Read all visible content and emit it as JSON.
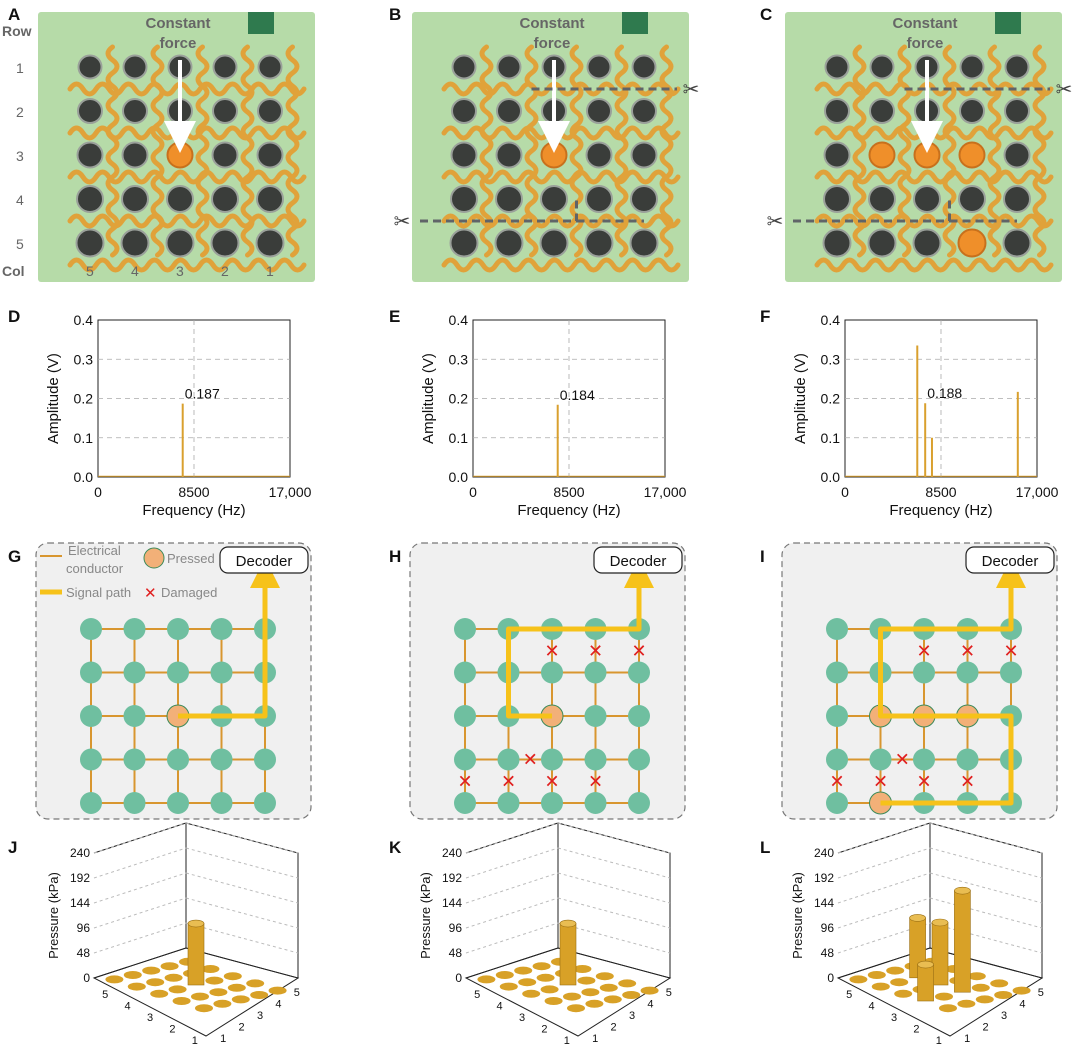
{
  "figure": {
    "panel_letters": [
      "A",
      "B",
      "C",
      "D",
      "E",
      "F",
      "G",
      "H",
      "I",
      "J",
      "K",
      "L"
    ],
    "photo": {
      "force_label_line1": "Constant",
      "force_label_line2": "force",
      "row_header": "Row",
      "col_header": "Col",
      "row_numbers": [
        "1",
        "2",
        "3",
        "4",
        "5"
      ],
      "col_numbers": [
        "5",
        "4",
        "3",
        "2",
        "1"
      ],
      "colors": {
        "background": "#b6dba8",
        "serpentine": "#e0a23a",
        "button": "#3a3d3a",
        "pressed": "#ef8f2a",
        "arrow": "#ffffff",
        "cut_line": "#606468"
      }
    },
    "spectra_common": {
      "xlabel": "Frequency (Hz)",
      "ylabel": "Amplitude (V)",
      "x_ticks": [
        "0",
        "8500",
        "17,000"
      ],
      "y_ticks": [
        "0.0",
        "0.1",
        "0.2",
        "0.3",
        "0.4"
      ],
      "line_color": "#d9a02e"
    },
    "schematic": {
      "decoder_label": "Decoder",
      "legend_conductor_line1": "Electrical",
      "legend_conductor_line2": "conductor",
      "legend_pressed": "Pressed",
      "legend_signal": "Signal path",
      "legend_damaged": "Damaged",
      "colors": {
        "node": "#6fbfa0",
        "pressed": "#f2b078",
        "grid": "#d8962f",
        "signal": "#f6c21a",
        "damaged": "#e02020",
        "panel_bg": "#f0f0f0"
      }
    },
    "bars_common": {
      "zlabel": "Pressure (kPa)",
      "z_ticks": [
        "0",
        "48",
        "96",
        "144",
        "192",
        "240"
      ],
      "axis_ticks": [
        "1",
        "2",
        "3",
        "4",
        "5"
      ],
      "bar_color": "#d8a127"
    }
  },
  "chart_data": [
    {
      "panel": "D",
      "type": "line",
      "title": "",
      "xlabel": "Frequency (Hz)",
      "ylabel": "Amplitude (V)",
      "xlim": [
        0,
        17000
      ],
      "ylim": [
        0,
        0.4
      ],
      "peaks": [
        {
          "x": 7500,
          "y": 0.187
        }
      ],
      "annotations": [
        {
          "text": "0.187",
          "x": 7500,
          "y": 0.187
        }
      ],
      "reference_line_x": 8500
    },
    {
      "panel": "E",
      "type": "line",
      "title": "",
      "xlabel": "Frequency (Hz)",
      "ylabel": "Amplitude (V)",
      "xlim": [
        0,
        17000
      ],
      "ylim": [
        0,
        0.4
      ],
      "peaks": [
        {
          "x": 7500,
          "y": 0.184
        }
      ],
      "annotations": [
        {
          "text": "0.184",
          "x": 7500,
          "y": 0.184
        }
      ],
      "reference_line_x": 8500
    },
    {
      "panel": "F",
      "type": "line",
      "title": "",
      "xlabel": "Frequency (Hz)",
      "ylabel": "Amplitude (V)",
      "xlim": [
        0,
        17000
      ],
      "ylim": [
        0,
        0.4
      ],
      "peaks": [
        {
          "x": 6400,
          "y": 0.335
        },
        {
          "x": 7100,
          "y": 0.188
        },
        {
          "x": 7700,
          "y": 0.1
        },
        {
          "x": 15300,
          "y": 0.217
        }
      ],
      "annotations": [
        {
          "text": "0.188",
          "x": 7100,
          "y": 0.188
        }
      ],
      "reference_line_x": 8500
    },
    {
      "panel": "J",
      "type": "bar3d",
      "zlabel": "Pressure (kPa)",
      "zlim": [
        0,
        240
      ],
      "bars": [
        {
          "row": 3,
          "col": 3,
          "value": 118
        }
      ]
    },
    {
      "panel": "K",
      "type": "bar3d",
      "zlabel": "Pressure (kPa)",
      "zlim": [
        0,
        240
      ],
      "bars": [
        {
          "row": 3,
          "col": 3,
          "value": 118
        }
      ]
    },
    {
      "panel": "L",
      "type": "bar3d",
      "zlabel": "Pressure (kPa)",
      "zlim": [
        0,
        240
      ],
      "bars": [
        {
          "row": 3,
          "col": 4,
          "value": 195
        },
        {
          "row": 3,
          "col": 3,
          "value": 120
        },
        {
          "row": 3,
          "col": 2,
          "value": 115
        },
        {
          "row": 5,
          "col": 4,
          "value": 70
        }
      ]
    }
  ],
  "schematics": [
    {
      "panel": "G",
      "pressed": [
        [
          3,
          3
        ]
      ],
      "damaged": [],
      "signal": [
        [
          3,
          3
        ],
        [
          3,
          5
        ],
        [
          1,
          5
        ]
      ],
      "decoder_from": [
        1,
        5
      ]
    },
    {
      "panel": "H",
      "pressed": [
        [
          3,
          3
        ]
      ],
      "damaged": [
        [
          1.5,
          3
        ],
        [
          1.5,
          4
        ],
        [
          1.5,
          5
        ],
        [
          4,
          2.5
        ],
        [
          4.5,
          1
        ],
        [
          4.5,
          2
        ],
        [
          4.5,
          3
        ],
        [
          4.5,
          4
        ]
      ],
      "signal": [
        [
          3,
          3
        ],
        [
          3,
          2
        ],
        [
          1,
          2
        ],
        [
          1,
          5
        ]
      ],
      "decoder_from": [
        1,
        5
      ]
    },
    {
      "panel": "I",
      "pressed": [
        [
          3,
          2
        ],
        [
          3,
          3
        ],
        [
          3,
          4
        ],
        [
          5,
          2
        ]
      ],
      "damaged": [
        [
          1.5,
          3
        ],
        [
          1.5,
          4
        ],
        [
          1.5,
          5
        ],
        [
          4,
          2.5
        ],
        [
          4.5,
          1
        ],
        [
          4.5,
          2
        ],
        [
          4.5,
          3
        ],
        [
          4.5,
          4
        ]
      ],
      "signal": [
        [
          5,
          2
        ],
        [
          5,
          5
        ],
        [
          3,
          5
        ],
        [
          3,
          2
        ],
        [
          1,
          2
        ],
        [
          1,
          5
        ]
      ],
      "decoder_from": [
        1,
        5
      ]
    }
  ]
}
